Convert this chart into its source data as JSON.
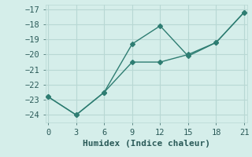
{
  "line1_x": [
    0,
    3,
    6,
    9,
    12,
    15,
    18,
    21
  ],
  "line1_y": [
    -22.8,
    -24.0,
    -22.5,
    -19.3,
    -18.1,
    -20.1,
    -19.2,
    -17.2
  ],
  "line2_x": [
    0,
    3,
    6,
    9,
    12,
    15,
    18,
    21
  ],
  "line2_y": [
    -22.8,
    -24.0,
    -22.5,
    -20.5,
    -20.5,
    -20.0,
    -19.2,
    -17.2
  ],
  "line_color": "#2e7d72",
  "bg_color": "#d5eeea",
  "grid_color": "#b8d8d4",
  "xlabel": "Humidex (Indice chaleur)",
  "ylim": [
    -24.5,
    -16.7
  ],
  "xlim": [
    -0.3,
    21.3
  ],
  "yticks": [
    -24,
    -23,
    -22,
    -21,
    -20,
    -19,
    -18,
    -17
  ],
  "xticks": [
    0,
    3,
    6,
    9,
    12,
    15,
    18,
    21
  ],
  "font_color": "#2a5a58",
  "marker": "D",
  "marker_size": 3,
  "linewidth": 1.0,
  "tick_fontsize": 7.5,
  "xlabel_fontsize": 8.0
}
